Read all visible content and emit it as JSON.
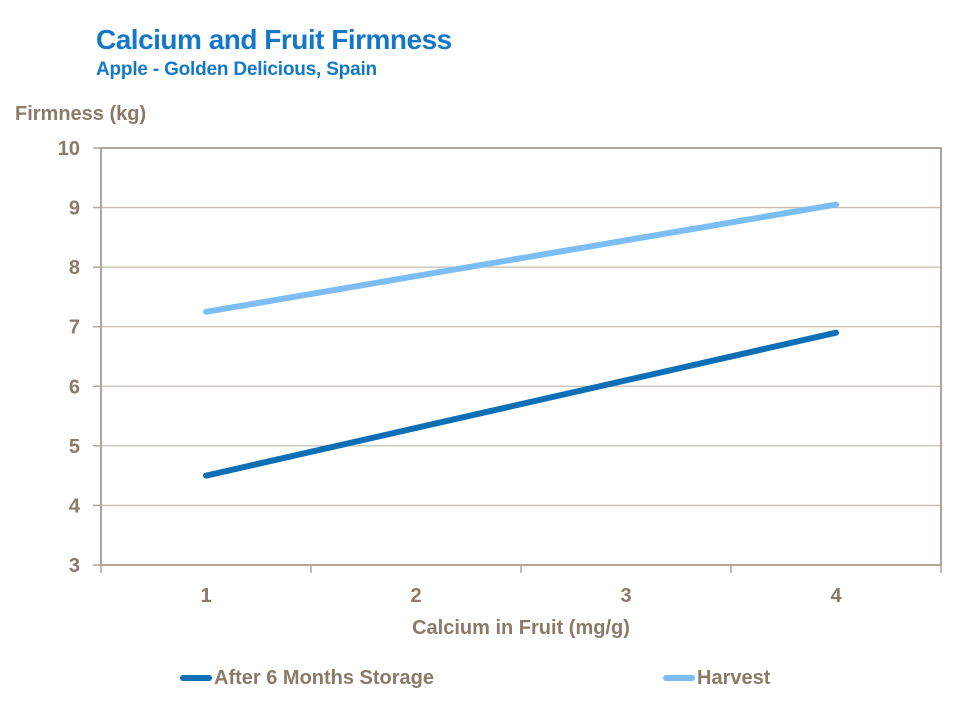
{
  "header": {
    "title": "Calcium and Fruit Firmness",
    "subtitle": "Apple - Golden Delicious, Spain"
  },
  "chart_data": {
    "type": "line",
    "title": "Calcium and Fruit Firmness",
    "subtitle": "Apple - Golden Delicious, Spain",
    "xlabel": "Calcium in Fruit (mg/g)",
    "ylabel": "Firmness (kg)",
    "categories": [
      "1",
      "2",
      "3",
      "4"
    ],
    "series": [
      {
        "name": "After 6 Months Storage",
        "values": [
          4.5,
          5.3,
          6.1,
          6.9
        ],
        "color": "#0F6FB5"
      },
      {
        "name": "Harvest",
        "values": [
          7.25,
          7.85,
          8.45,
          9.05
        ],
        "color": "#7CBEF3"
      }
    ],
    "ylim": [
      3,
      10
    ],
    "yticks": [
      3,
      4,
      5,
      6,
      7,
      8,
      9,
      10
    ],
    "grid": true,
    "legend_position": "bottom"
  },
  "colors": {
    "title_blue": "#1478C8",
    "axis_text": "#8A7A68",
    "axis_border": "#B0A698",
    "gridline": "#C6BDB1"
  }
}
